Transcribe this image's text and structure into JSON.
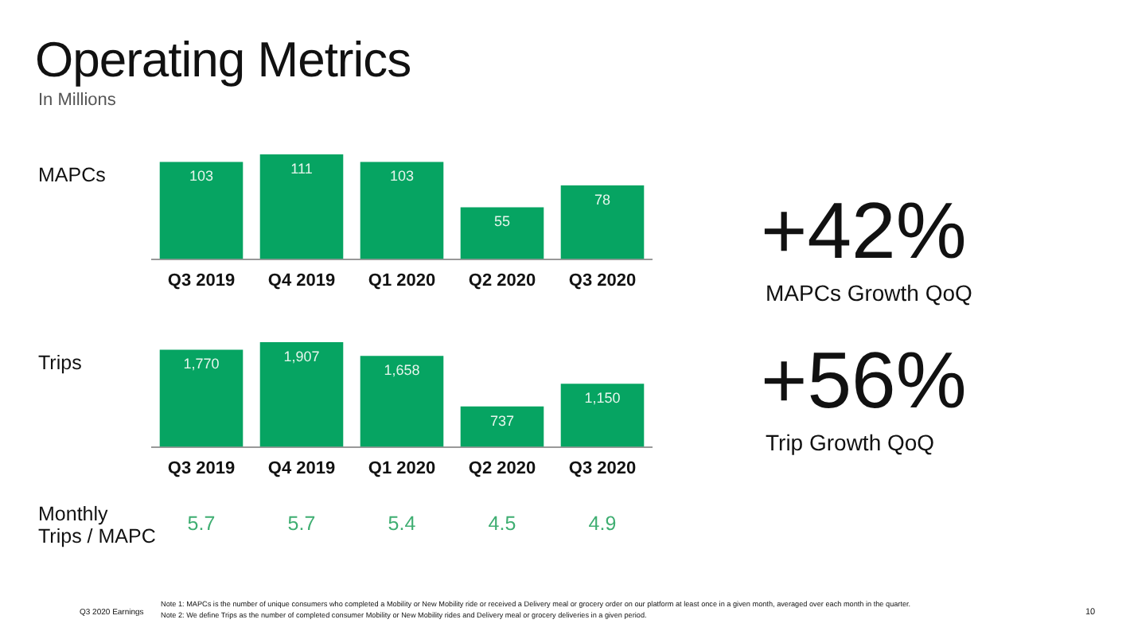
{
  "chart_data": [
    {
      "type": "bar",
      "title": "Operating Metrics",
      "subtitle": "In Millions",
      "ylabel": "MAPCs",
      "categories": [
        "Q3 2019",
        "Q4 2019",
        "Q1 2020",
        "Q2 2020",
        "Q3 2020"
      ],
      "values": [
        103,
        111,
        103,
        55,
        78
      ],
      "color": "#06a462",
      "data_labels": true,
      "annotations": [
        "+42%",
        "MAPCs Growth QoQ"
      ]
    },
    {
      "type": "bar",
      "ylabel": "Trips",
      "categories": [
        "Q3 2019",
        "Q4 2019",
        "Q1 2020",
        "Q2 2020",
        "Q3 2020"
      ],
      "values": [
        1770,
        1907,
        1658,
        737,
        1150
      ],
      "value_labels": [
        "1,770",
        "1,907",
        "1,658",
        "737",
        "1,150"
      ],
      "color": "#06a462",
      "annotations": [
        "+56%",
        "Trip Growth QoQ"
      ]
    },
    {
      "type": "other",
      "ylabel": "Monthly\nTrips / MAPC",
      "values": [
        5.7,
        5.7,
        5.4,
        4.5,
        4.9
      ],
      "color": "#3fae72",
      "data_labels": true,
      "annotations": [
        "Q3 2020 Earnings",
        "Note 1: MAPCs is the number of unique consumers who completed a Mobility or New Mobility ride or received a Delivery meal or grocery order on our platform at least once in a given month, averaged over each month in the quarter.",
        "Note 2: We define Trips as the number of completed consumer Mobility or New Mobility rides and Delivery meal or grocery deliveries in a given period.",
        "10"
      ]
    }
  ]
}
